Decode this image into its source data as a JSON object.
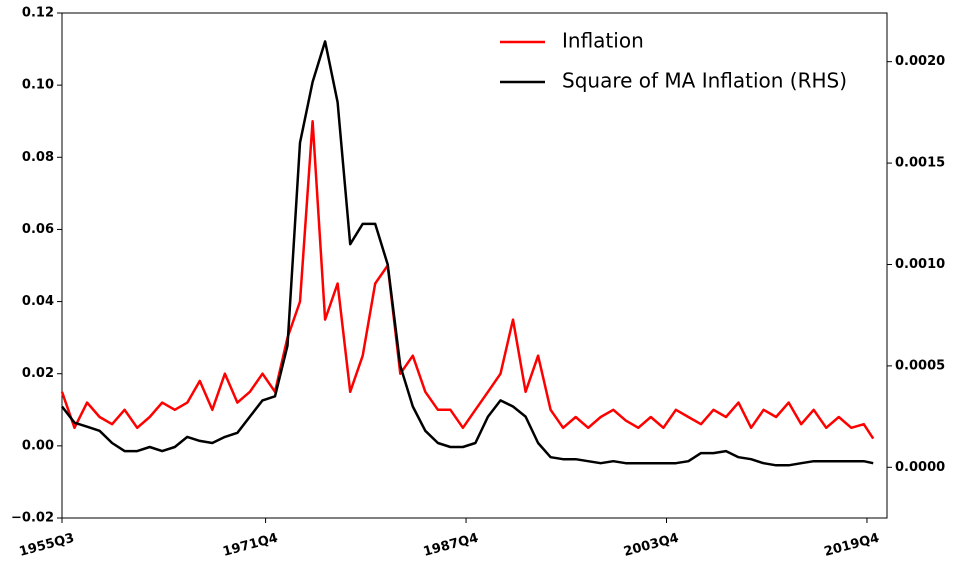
{
  "chart_data": {
    "type": "line",
    "x": [
      1955.5,
      1956.5,
      1957.5,
      1958.5,
      1959.5,
      1960.5,
      1961.5,
      1962.5,
      1963.5,
      1964.5,
      1965.5,
      1966.5,
      1967.5,
      1968.5,
      1969.5,
      1970.5,
      1971.5,
      1972.5,
      1973.5,
      1974.5,
      1975.5,
      1976.5,
      1977.5,
      1978.5,
      1979.5,
      1980.5,
      1981.5,
      1982.5,
      1983.5,
      1984.5,
      1985.5,
      1986.5,
      1987.5,
      1988.5,
      1989.5,
      1990.5,
      1991.5,
      1992.5,
      1993.5,
      1994.5,
      1995.5,
      1996.5,
      1997.5,
      1998.5,
      1999.5,
      2000.5,
      2001.5,
      2002.5,
      2003.5,
      2004.5,
      2005.5,
      2006.5,
      2007.5,
      2008.5,
      2009.5,
      2010.5,
      2011.5,
      2012.5,
      2013.5,
      2014.5,
      2015.5,
      2016.5,
      2017.5,
      2018.5,
      2019.5,
      2020.25
    ],
    "xlim": [
      1955.5,
      2021.35
    ],
    "xticks": [
      {
        "value": 1955.5,
        "label": "1955Q3"
      },
      {
        "value": 1971.75,
        "label": "1971Q4"
      },
      {
        "value": 1987.75,
        "label": "1987Q4"
      },
      {
        "value": 2003.75,
        "label": "2003Q4"
      },
      {
        "value": 2019.75,
        "label": "2019Q4"
      }
    ],
    "ylim": [
      -0.02,
      0.12
    ],
    "yticks": [
      {
        "value": -0.02,
        "label": "−0.02"
      },
      {
        "value": 0,
        "label": "0.00"
      },
      0.02,
      0.04,
      0.06,
      0.08,
      {
        "value": 0.1,
        "label": "0.10"
      },
      0.12
    ],
    "y2lim": [
      -0.00025,
      0.00224
    ],
    "y2ticks": [
      {
        "value": 0,
        "label": "0.0000"
      },
      0.0005,
      {
        "value": 0.001,
        "label": "0.0010"
      },
      0.0015,
      {
        "value": 0.002,
        "label": "0.0020"
      }
    ],
    "legend": "upper right",
    "series": [
      {
        "name": "Inflation",
        "color": "#ff0000",
        "values": [
          0.015,
          0.005,
          0.012,
          0.008,
          0.006,
          0.01,
          0.005,
          0.008,
          0.012,
          0.01,
          0.012,
          0.018,
          0.01,
          0.02,
          0.012,
          0.015,
          0.02,
          0.015,
          0.03,
          0.04,
          0.09,
          0.035,
          0.045,
          0.015,
          0.025,
          0.045,
          0.05,
          0.02,
          0.025,
          0.015,
          0.01,
          0.01,
          0.005,
          0.01,
          0.015,
          0.02,
          0.035,
          0.015,
          0.025,
          0.01,
          0.005,
          0.008,
          0.005,
          0.008,
          0.01,
          0.007,
          0.005,
          0.008,
          0.005,
          0.01,
          0.008,
          0.006,
          0.01,
          0.008,
          0.012,
          0.005,
          0.01,
          0.008,
          0.012,
          0.006,
          0.01,
          0.005,
          0.008,
          0.005,
          0.006,
          0.002
        ]
      },
      {
        "name": "Square of MA Inflation (RHS)",
        "color": "#000000",
        "axis": "y2",
        "values": [
          0.0003,
          0.00022,
          0.0002,
          0.00018,
          0.00012,
          8e-05,
          8e-05,
          0.0001,
          8e-05,
          0.0001,
          0.00015,
          0.00013,
          0.00012,
          0.00015,
          0.00017,
          0.00025,
          0.00033,
          0.00035,
          0.0006,
          0.0016,
          0.0019,
          0.0021,
          0.0018,
          0.0011,
          0.0012,
          0.0012,
          0.001,
          0.0005,
          0.0003,
          0.00018,
          0.00012,
          0.0001,
          0.0001,
          0.00012,
          0.00025,
          0.00033,
          0.0003,
          0.00025,
          0.00012,
          5e-05,
          4e-05,
          4e-05,
          3e-05,
          2e-05,
          3e-05,
          2e-05,
          2e-05,
          2e-05,
          2e-05,
          2e-05,
          3e-05,
          7e-05,
          7e-05,
          8e-05,
          5e-05,
          4e-05,
          2e-05,
          1e-05,
          1e-05,
          2e-05,
          3e-05,
          3e-05,
          3e-05,
          3e-05,
          3e-05,
          2e-05
        ]
      }
    ]
  }
}
